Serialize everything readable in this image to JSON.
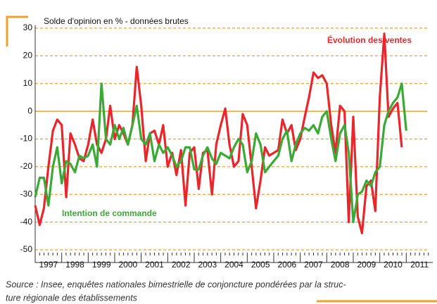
{
  "chart_data": {
    "type": "line",
    "axis_title": "Solde d'opinion en % - données brutes",
    "source": [
      "Source : Insee, enquêtes nationales bimestrielle de conjoncture pondérées par la struc-",
      "ture régionale des établissements"
    ],
    "categories": [
      "1997",
      "1998",
      "1999",
      "2000",
      "2001",
      "2002",
      "2003",
      "2004",
      "2005",
      "2006",
      "2007",
      "2008",
      "2009",
      "2010",
      "2011"
    ],
    "xlim": [
      1997,
      2012
    ],
    "ylim": [
      -50,
      30
    ],
    "yticks": [
      -50,
      -40,
      -30,
      -20,
      -10,
      0,
      10,
      20,
      30
    ],
    "grid": true,
    "x": [
      1997,
      1997.17,
      1997.33,
      1997.5,
      1997.67,
      1997.83,
      1998,
      1998.17,
      1998.33,
      1998.5,
      1998.67,
      1998.83,
      1999,
      1999.17,
      1999.33,
      1999.5,
      1999.67,
      1999.83,
      2000,
      2000.17,
      2000.33,
      2000.5,
      2000.67,
      2000.83,
      2001,
      2001.17,
      2001.33,
      2001.5,
      2001.67,
      2001.83,
      2002,
      2002.17,
      2002.33,
      2002.5,
      2002.67,
      2002.83,
      2003,
      2003.17,
      2003.33,
      2003.5,
      2003.67,
      2003.83,
      2004,
      2004.17,
      2004.33,
      2004.5,
      2004.67,
      2004.83,
      2005,
      2005.17,
      2005.33,
      2005.5,
      2005.67,
      2005.83,
      2006,
      2006.17,
      2006.33,
      2006.5,
      2006.67,
      2006.83,
      2007,
      2007.17,
      2007.33,
      2007.5,
      2007.67,
      2007.83,
      2008,
      2008.17,
      2008.33,
      2008.5,
      2008.67,
      2008.83,
      2009,
      2009.17,
      2009.33,
      2009.5,
      2009.67,
      2009.83,
      2010,
      2010.17,
      2010.33,
      2010.5,
      2010.67,
      2010.83,
      2011
    ],
    "series": [
      {
        "name": "Évolution des ventes",
        "color": "#e8262c",
        "values": [
          -34,
          -41,
          -35,
          -20,
          -7,
          -3,
          -5,
          -31,
          -8,
          -12,
          -17,
          -18,
          -12,
          -3,
          -12,
          -15,
          -10,
          2,
          -10,
          -5,
          -8,
          -12,
          -5,
          16,
          2,
          -18,
          -8,
          -7,
          -12,
          -5,
          -20,
          -15,
          -23,
          -14,
          -34,
          -15,
          -13,
          -28,
          -15,
          -14,
          -30,
          -12,
          -5,
          1,
          -12,
          -20,
          -18,
          -1,
          -5,
          -20,
          -35,
          -25,
          -13,
          -16,
          -15,
          -14,
          -3,
          -8,
          -5,
          -14,
          -10,
          -2,
          5,
          14,
          12,
          13,
          10,
          -5,
          -15,
          2,
          0,
          -40,
          -2,
          -38,
          -44,
          -27,
          -25,
          -36,
          5,
          28,
          -2,
          1,
          3,
          -13,
          null
        ]
      },
      {
        "name": "Intention de commande",
        "color": "#3aa935",
        "values": [
          -31,
          -24,
          -24,
          -34,
          -20,
          -13,
          -26,
          -18,
          -19,
          -22,
          -16,
          -17,
          -16,
          -12,
          -20,
          10,
          -10,
          -12,
          -5,
          -10,
          -6,
          -12,
          -5,
          2,
          -10,
          -12,
          -8,
          -18,
          -12,
          -15,
          -13,
          -16,
          -20,
          -18,
          -13,
          -13,
          -21,
          -21,
          -16,
          -13,
          -17,
          -19,
          -15,
          -16,
          -17,
          -13,
          -10,
          -12,
          -22,
          -18,
          -8,
          -12,
          -22,
          -20,
          -18,
          -16,
          -10,
          -7,
          -18,
          -12,
          -8,
          -6,
          -7,
          -5,
          -8,
          -2,
          0,
          -10,
          -18,
          -8,
          -5,
          -15,
          -40,
          -30,
          -29,
          -25,
          -27,
          -22,
          -20,
          -5,
          0,
          3,
          5,
          10,
          -7
        ]
      }
    ]
  }
}
